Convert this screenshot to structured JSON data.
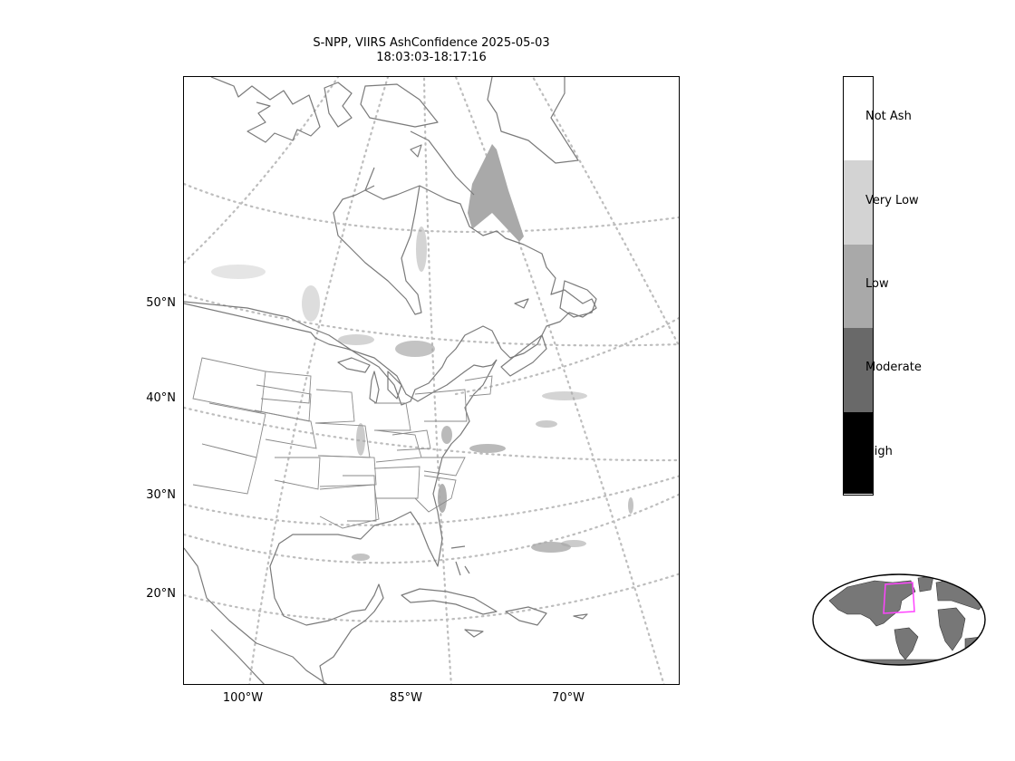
{
  "title": {
    "line1": "S-NPP, VIIRS AshConfidence 2025-05-03",
    "line2": "18:03:03-18:17:16"
  },
  "lat_labels": [
    "50°N",
    "40°N",
    "30°N",
    "20°N"
  ],
  "lon_labels": [
    "100°W",
    "85°W",
    "70°W"
  ],
  "colorbar": {
    "categories": [
      {
        "label": "Not Ash",
        "color": "#ffffff"
      },
      {
        "label": "Very Low",
        "color": "#d3d3d3"
      },
      {
        "label": "Low",
        "color": "#a9a9a9"
      },
      {
        "label": "Moderate",
        "color": "#696969"
      },
      {
        "label": "High",
        "color": "#000000"
      }
    ]
  },
  "colors": {
    "coastline": "#7a7a7a",
    "gridline": "#bdbdbd",
    "inset_land": "#777777",
    "inset_box": "#ff44ff"
  }
}
